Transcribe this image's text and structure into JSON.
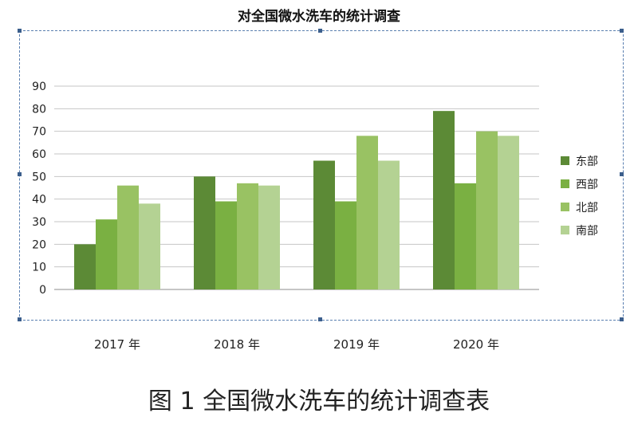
{
  "chart_data": {
    "type": "bar",
    "title": "对全国微水洗车的统计调查",
    "caption": "图 1 全国微水洗车的统计调查表",
    "categories": [
      "2017 年",
      "2018 年",
      "2019 年",
      "2020 年"
    ],
    "series": [
      {
        "name": "东部",
        "values": [
          20,
          50,
          57,
          79
        ],
        "color": "#5c8a36"
      },
      {
        "name": "西部",
        "values": [
          31,
          39,
          39,
          47
        ],
        "color": "#7ab042"
      },
      {
        "name": "北部",
        "values": [
          46,
          47,
          68,
          70
        ],
        "color": "#99c263"
      },
      {
        "name": "南部",
        "values": [
          38,
          46,
          57,
          68
        ],
        "color": "#b4d293"
      }
    ],
    "y_ticks": [
      "0",
      "10",
      "20",
      "30",
      "40",
      "50",
      "60",
      "70",
      "80",
      "90"
    ],
    "ylim": [
      0,
      90
    ],
    "grid": true,
    "legend_position": "right"
  }
}
